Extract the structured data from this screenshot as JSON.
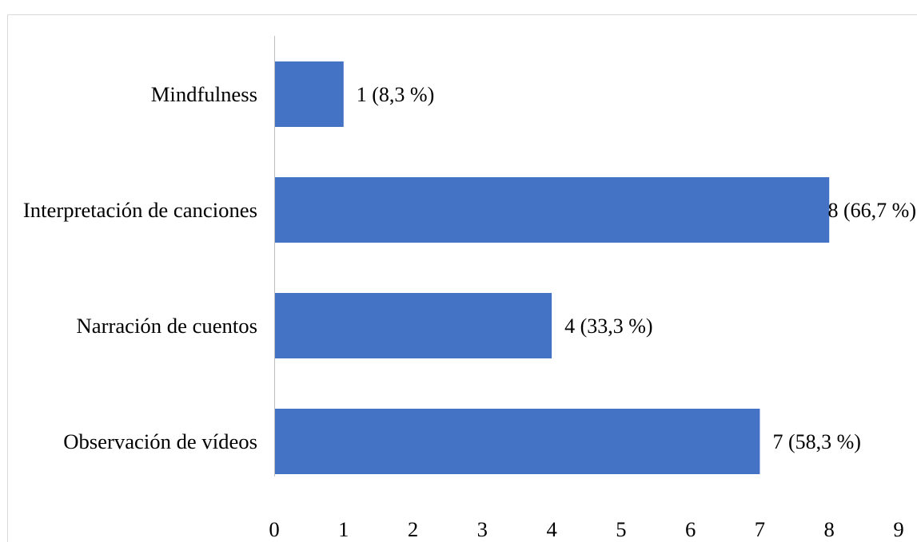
{
  "chart_data": {
    "type": "bar",
    "orientation": "horizontal",
    "categories": [
      "Mindfulness",
      "Interpretación de canciones",
      "Narración de cuentos",
      "Observación de vídeos"
    ],
    "values": [
      1,
      8,
      4,
      7
    ],
    "data_labels": [
      "1 (8,3 %)",
      "8 (66,7 %)",
      "4 (33,3 %)",
      "7 (58,3 %)"
    ],
    "xlim": [
      0,
      9
    ],
    "x_ticks": [
      0,
      1,
      2,
      3,
      4,
      5,
      6,
      7,
      8,
      9
    ],
    "grid": false,
    "legend": "none",
    "bar_color": "#4472C4",
    "axis_color": "#BFBFBF",
    "frame_color": "#D9D9D9"
  }
}
